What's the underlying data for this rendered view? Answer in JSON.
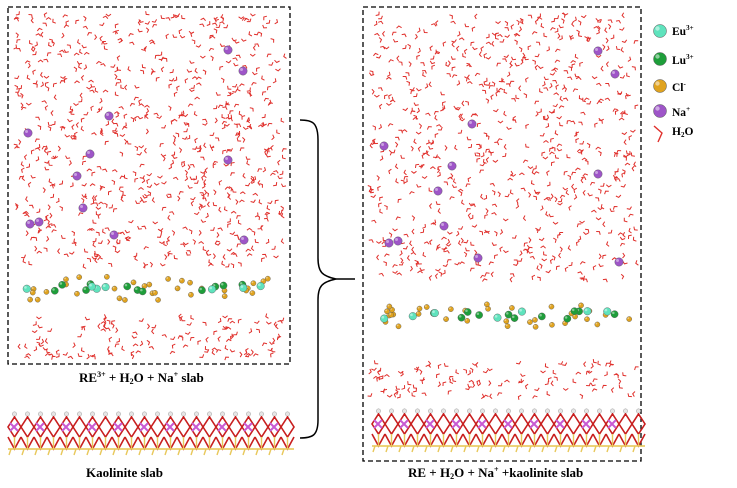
{
  "legend": {
    "items": [
      {
        "key": "eu",
        "symbol": "Eu",
        "charge": "3+",
        "color": "#5fe3bd"
      },
      {
        "key": "lu",
        "symbol": "Lu",
        "charge": "3+",
        "color": "#1e9e3a"
      },
      {
        "key": "cl",
        "symbol": "Cl",
        "charge": "-",
        "color": "#e0a31f"
      },
      {
        "key": "na",
        "symbol": "Na",
        "charge": "+",
        "color": "#9e55c8"
      },
      {
        "key": "h2o",
        "symbol": "H",
        "sub": "2",
        "tail": "O",
        "color": "#e0302c"
      }
    ]
  },
  "captions": {
    "left_box": {
      "p1": "RE",
      "sup1": "3+",
      "p2": " + H",
      "sub1": "2",
      "p3": "O + Na",
      "sup2": "+",
      "p4": " slab"
    },
    "kaolinite": "Kaolinite slab",
    "right_box": {
      "p1": "RE + H",
      "sub1": "2",
      "p2": "O + Na",
      "sup1": "+",
      "p3": " +kaolinite slab"
    }
  },
  "colors": {
    "water": "#e0302c",
    "sodium": "#9e55c8",
    "chloride": "#e0a31f",
    "europium": "#5fe3bd",
    "lutetium": "#1e9e3a",
    "kaolinite_o": "#c81e1e",
    "kaolinite_al": "#c85ad2",
    "kaolinite_si": "#e8c85a",
    "kaolinite_h": "#e6e6e6"
  }
}
